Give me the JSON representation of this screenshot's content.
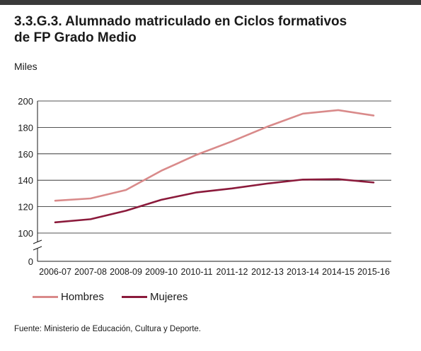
{
  "title_line1": "3.3.G.3. Alumnado matriculado en Ciclos formativos",
  "title_line2": "de FP Grado Medio",
  "source": "Fuente: Ministerio de Educación, Cultura y Deporte.",
  "chart_data": {
    "type": "line",
    "ylabel": "Miles",
    "xlabel": "",
    "categories": [
      "2006-07",
      "2007-08",
      "2008-09",
      "2009-10",
      "2010-11",
      "2011-12",
      "2012-13",
      "2013-14",
      "2014-15",
      "2015-16"
    ],
    "yticks": [
      0,
      100,
      120,
      140,
      160,
      180,
      200
    ],
    "ylim": [
      100,
      200
    ],
    "axis_break": true,
    "grid": true,
    "legend_position": "bottom-left",
    "series": [
      {
        "name": "Hombres",
        "color": "#d98a8a",
        "values": [
          124.5,
          126.2,
          132.6,
          147.2,
          159.3,
          169.5,
          180.6,
          190.4,
          193.1,
          189.0
        ]
      },
      {
        "name": "Mujeres",
        "color": "#8b1a3b",
        "values": [
          108.1,
          110.5,
          116.9,
          125.2,
          130.8,
          133.8,
          137.5,
          140.5,
          140.8,
          138.3
        ]
      }
    ]
  }
}
